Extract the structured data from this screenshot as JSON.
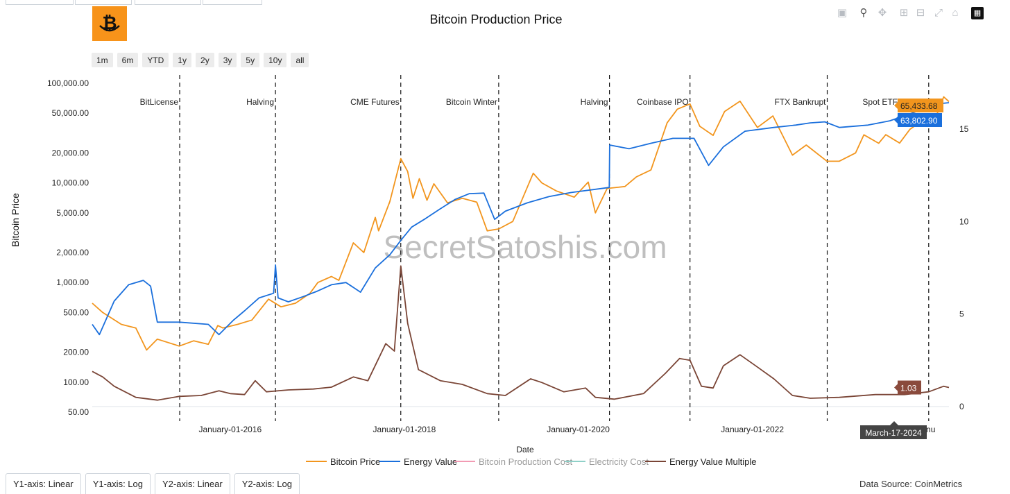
{
  "page": {
    "title": "Bitcoin Production Price",
    "logo_symbol": "₿",
    "watermark": "SecretSatoshis.com",
    "data_source": "Data Source: CoinMetrics"
  },
  "range_buttons": [
    "1m",
    "6m",
    "YTD",
    "1y",
    "2y",
    "3y",
    "5y",
    "10y",
    "all"
  ],
  "axis_buttons": [
    "Y1-axis: Linear",
    "Y1-axis: Log",
    "Y2-axis: Linear",
    "Y2-axis: Log"
  ],
  "modebar_icons": [
    "camera-icon",
    "zoom-icon",
    "pan-icon",
    "zoom-in-icon",
    "zoom-out-icon",
    "autoscale-icon",
    "home-icon",
    "plotly-logo-icon"
  ],
  "colors": {
    "btc_price": "#f2951d",
    "energy_value": "#1a6fdc",
    "production_cost": "#f29bb3",
    "electricity_cost": "#8fd0c8",
    "multiple": "#7a4536",
    "event_line": "#111111"
  },
  "chart_data": {
    "type": "line",
    "title": "Bitcoin Production Price",
    "xlabel": "Date",
    "ylabel": "Bitcoin Price",
    "x_range": [
      "2014-06-01",
      "2024-04-05"
    ],
    "y1": {
      "scale": "log",
      "range": [
        50,
        100000
      ],
      "ticks": [
        100000,
        50000,
        20000,
        10000,
        5000,
        2000,
        1000,
        500,
        200,
        100,
        50
      ],
      "tick_labels": [
        "100,000.00",
        "50,000.00",
        "20,000.00",
        "10,000.00",
        "5,000.00",
        "2,000.00",
        "1,000.00",
        "500.00",
        "200.00",
        "100.00",
        "50.00"
      ]
    },
    "y2": {
      "scale": "linear",
      "range": [
        0,
        18
      ],
      "ticks": [
        0,
        5,
        10,
        15
      ],
      "tick_labels": [
        "0",
        "5",
        "10",
        "15"
      ]
    },
    "x_ticks": [
      {
        "date": "2016-01-01",
        "label": "January-01-2016"
      },
      {
        "date": "2018-01-01",
        "label": "January-01-2018"
      },
      {
        "date": "2020-01-01",
        "label": "January-01-2020"
      },
      {
        "date": "2022-01-01",
        "label": "January-01-2022"
      },
      {
        "date": "2024-01-01",
        "label": "Janu"
      }
    ],
    "events": [
      {
        "date": "2015-06-03",
        "label": "BitLicense"
      },
      {
        "date": "2016-07-09",
        "label": "Halving"
      },
      {
        "date": "2017-12-17",
        "label": "CME Futures"
      },
      {
        "date": "2019-02-01",
        "label": "Bitcoin Winter"
      },
      {
        "date": "2020-05-11",
        "label": "Halving"
      },
      {
        "date": "2021-04-14",
        "label": "Coinbase IPO"
      },
      {
        "date": "2022-11-11",
        "label": "FTX Bankrupt"
      },
      {
        "date": "2024-01-11",
        "label": "Spot ETF Launch"
      }
    ],
    "series": [
      {
        "name": "Bitcoin Price",
        "axis": "y1",
        "color_key": "btc_price",
        "last_label": "65,433.68",
        "points": [
          [
            "2014-06-01",
            620
          ],
          [
            "2014-07-15",
            500
          ],
          [
            "2014-10-01",
            380
          ],
          [
            "2014-12-01",
            350
          ],
          [
            "2015-01-15",
            210
          ],
          [
            "2015-03-01",
            270
          ],
          [
            "2015-06-01",
            230
          ],
          [
            "2015-08-01",
            260
          ],
          [
            "2015-10-01",
            240
          ],
          [
            "2015-11-10",
            370
          ],
          [
            "2015-12-01",
            350
          ],
          [
            "2016-02-01",
            380
          ],
          [
            "2016-04-01",
            420
          ],
          [
            "2016-06-10",
            680
          ],
          [
            "2016-08-01",
            570
          ],
          [
            "2016-10-01",
            620
          ],
          [
            "2016-12-01",
            780
          ],
          [
            "2017-01-03",
            1000
          ],
          [
            "2017-03-01",
            1150
          ],
          [
            "2017-04-01",
            1050
          ],
          [
            "2017-06-01",
            2500
          ],
          [
            "2017-07-15",
            2000
          ],
          [
            "2017-09-01",
            4500
          ],
          [
            "2017-09-15",
            3300
          ],
          [
            "2017-11-01",
            6500
          ],
          [
            "2017-12-17",
            17500
          ],
          [
            "2018-01-15",
            13000
          ],
          [
            "2018-02-06",
            7000
          ],
          [
            "2018-03-05",
            11000
          ],
          [
            "2018-04-06",
            6700
          ],
          [
            "2018-05-05",
            9800
          ],
          [
            "2018-07-01",
            6300
          ],
          [
            "2018-09-01",
            7000
          ],
          [
            "2018-11-01",
            6400
          ],
          [
            "2018-12-15",
            3300
          ],
          [
            "2019-02-01",
            3450
          ],
          [
            "2019-04-01",
            4100
          ],
          [
            "2019-06-26",
            12500
          ],
          [
            "2019-08-01",
            10000
          ],
          [
            "2019-10-01",
            8300
          ],
          [
            "2019-12-15",
            7200
          ],
          [
            "2020-02-12",
            10200
          ],
          [
            "2020-03-13",
            5000
          ],
          [
            "2020-05-01",
            8800
          ],
          [
            "2020-07-15",
            9200
          ],
          [
            "2020-09-01",
            11500
          ],
          [
            "2020-11-01",
            13500
          ],
          [
            "2021-01-08",
            40000
          ],
          [
            "2021-02-20",
            55000
          ],
          [
            "2021-04-14",
            62000
          ],
          [
            "2021-05-25",
            37000
          ],
          [
            "2021-07-20",
            30000
          ],
          [
            "2021-09-06",
            52000
          ],
          [
            "2021-11-10",
            66000
          ],
          [
            "2022-01-22",
            36000
          ],
          [
            "2022-03-28",
            47000
          ],
          [
            "2022-06-18",
            19000
          ],
          [
            "2022-08-15",
            24000
          ],
          [
            "2022-11-10",
            16500
          ],
          [
            "2022-12-31",
            16500
          ],
          [
            "2023-03-10",
            20000
          ],
          [
            "2023-04-14",
            30400
          ],
          [
            "2023-06-15",
            25000
          ],
          [
            "2023-07-15",
            30500
          ],
          [
            "2023-09-11",
            25100
          ],
          [
            "2023-10-24",
            34500
          ],
          [
            "2024-01-11",
            46500
          ],
          [
            "2024-01-23",
            39500
          ],
          [
            "2024-02-20",
            52000
          ],
          [
            "2024-03-14",
            73000
          ],
          [
            "2024-04-05",
            65433.68
          ]
        ]
      },
      {
        "name": "Energy Value",
        "axis": "y1",
        "color_key": "energy_value",
        "last_label": "63,802.90",
        "points": [
          [
            "2014-06-01",
            380
          ],
          [
            "2014-07-01",
            300
          ],
          [
            "2014-09-01",
            650
          ],
          [
            "2014-11-01",
            950
          ],
          [
            "2015-01-01",
            1050
          ],
          [
            "2015-02-01",
            920
          ],
          [
            "2015-03-01",
            400
          ],
          [
            "2015-06-01",
            400
          ],
          [
            "2015-10-01",
            380
          ],
          [
            "2015-11-15",
            300
          ],
          [
            "2016-01-15",
            420
          ],
          [
            "2016-03-01",
            520
          ],
          [
            "2016-05-01",
            700
          ],
          [
            "2016-07-01",
            780
          ],
          [
            "2016-07-09",
            1500
          ],
          [
            "2016-07-20",
            700
          ],
          [
            "2016-09-01",
            640
          ],
          [
            "2016-11-01",
            720
          ],
          [
            "2017-01-01",
            820
          ],
          [
            "2017-03-01",
            950
          ],
          [
            "2017-05-01",
            1000
          ],
          [
            "2017-07-01",
            800
          ],
          [
            "2017-09-01",
            1400
          ],
          [
            "2017-11-01",
            1900
          ],
          [
            "2017-12-20",
            2700
          ],
          [
            "2018-02-01",
            3600
          ],
          [
            "2018-04-01",
            4400
          ],
          [
            "2018-06-01",
            5500
          ],
          [
            "2018-08-01",
            6800
          ],
          [
            "2018-10-01",
            7800
          ],
          [
            "2018-12-01",
            7900
          ],
          [
            "2019-01-15",
            4300
          ],
          [
            "2019-03-01",
            5200
          ],
          [
            "2019-06-01",
            6300
          ],
          [
            "2019-09-01",
            7300
          ],
          [
            "2019-12-01",
            8000
          ],
          [
            "2020-05-10",
            9000
          ],
          [
            "2020-05-12",
            24000
          ],
          [
            "2020-08-01",
            22000
          ],
          [
            "2020-11-01",
            25000
          ],
          [
            "2021-02-01",
            28000
          ],
          [
            "2021-05-01",
            28000
          ],
          [
            "2021-07-01",
            15000
          ],
          [
            "2021-09-01",
            23000
          ],
          [
            "2021-12-01",
            33000
          ],
          [
            "2022-04-01",
            36000
          ],
          [
            "2022-07-01",
            38000
          ],
          [
            "2022-09-01",
            40000
          ],
          [
            "2022-11-01",
            41000
          ],
          [
            "2023-01-01",
            36000
          ],
          [
            "2023-05-01",
            38000
          ],
          [
            "2023-08-01",
            42000
          ],
          [
            "2023-11-01",
            50000
          ],
          [
            "2024-01-15",
            58000
          ],
          [
            "2024-02-15",
            62000
          ],
          [
            "2024-04-05",
            63802.9
          ]
        ]
      },
      {
        "name": "Bitcoin Production Cost",
        "axis": "y1",
        "color_key": "production_cost",
        "points": []
      },
      {
        "name": "Electricity Cost",
        "axis": "y1",
        "color_key": "electricity_cost",
        "points": []
      },
      {
        "name": "Energy Value Multiple",
        "axis": "y2",
        "color_key": "multiple",
        "last_label": "1.03",
        "points": [
          [
            "2014-06-01",
            1.9
          ],
          [
            "2014-07-15",
            1.6
          ],
          [
            "2014-09-01",
            1.1
          ],
          [
            "2014-12-01",
            0.5
          ],
          [
            "2015-03-01",
            0.35
          ],
          [
            "2015-06-01",
            0.55
          ],
          [
            "2015-09-01",
            0.6
          ],
          [
            "2015-11-15",
            0.85
          ],
          [
            "2016-01-01",
            0.7
          ],
          [
            "2016-03-01",
            0.65
          ],
          [
            "2016-04-15",
            1.4
          ],
          [
            "2016-06-01",
            0.8
          ],
          [
            "2016-09-01",
            0.9
          ],
          [
            "2016-12-15",
            0.95
          ],
          [
            "2017-03-01",
            1.05
          ],
          [
            "2017-06-01",
            1.6
          ],
          [
            "2017-08-01",
            1.4
          ],
          [
            "2017-09-15",
            2.6
          ],
          [
            "2017-10-15",
            3.4
          ],
          [
            "2017-11-20",
            3.0
          ],
          [
            "2017-12-17",
            7.6
          ],
          [
            "2018-01-15",
            4.5
          ],
          [
            "2018-03-01",
            2.0
          ],
          [
            "2018-06-01",
            1.4
          ],
          [
            "2018-09-01",
            1.2
          ],
          [
            "2018-12-15",
            0.7
          ],
          [
            "2019-03-01",
            0.6
          ],
          [
            "2019-06-15",
            1.5
          ],
          [
            "2019-08-01",
            1.3
          ],
          [
            "2019-11-01",
            0.8
          ],
          [
            "2020-02-01",
            1.0
          ],
          [
            "2020-03-13",
            0.5
          ],
          [
            "2020-06-01",
            0.4
          ],
          [
            "2020-10-01",
            0.7
          ],
          [
            "2021-01-01",
            1.8
          ],
          [
            "2021-03-01",
            2.6
          ],
          [
            "2021-04-14",
            2.5
          ],
          [
            "2021-06-01",
            1.1
          ],
          [
            "2021-07-20",
            1.0
          ],
          [
            "2021-09-01",
            2.2
          ],
          [
            "2021-11-10",
            2.8
          ],
          [
            "2022-01-15",
            2.2
          ],
          [
            "2022-04-01",
            1.5
          ],
          [
            "2022-06-18",
            0.6
          ],
          [
            "2022-09-01",
            0.45
          ],
          [
            "2023-01-01",
            0.5
          ],
          [
            "2023-06-01",
            0.65
          ],
          [
            "2023-10-01",
            0.65
          ],
          [
            "2024-01-11",
            0.8
          ],
          [
            "2024-03-14",
            1.1
          ],
          [
            "2024-04-05",
            1.03
          ]
        ]
      }
    ],
    "hover_date": "March-17-2024"
  }
}
